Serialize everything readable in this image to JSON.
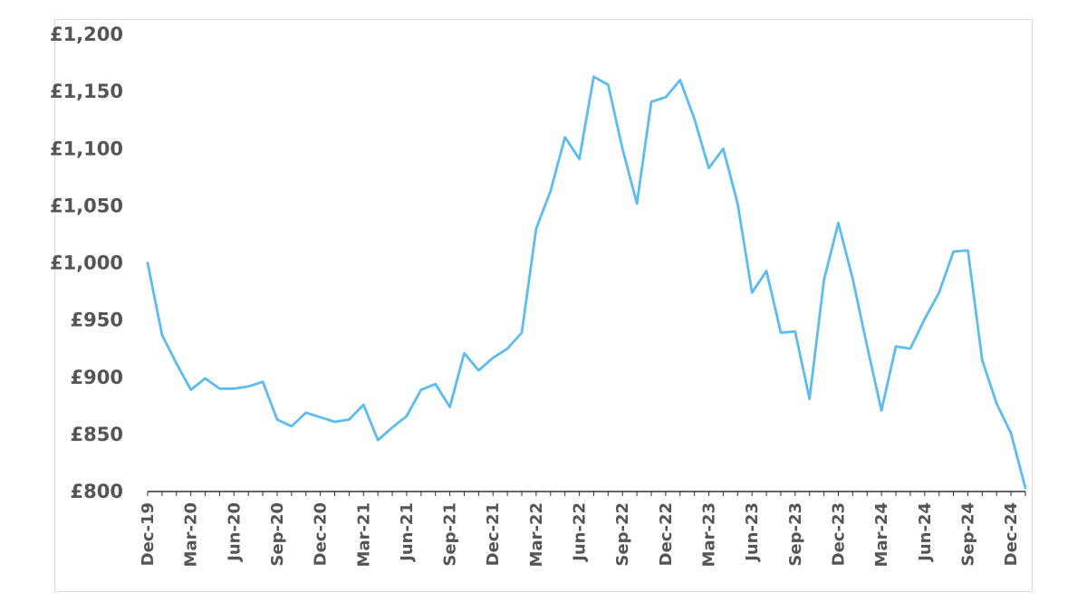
{
  "chart_data": {
    "type": "line",
    "title": "",
    "xlabel": "",
    "ylabel": "",
    "ylim": [
      800,
      1200
    ],
    "y_ticks": [
      800,
      850,
      900,
      950,
      1000,
      1050,
      1100,
      1150,
      1200
    ],
    "y_tick_labels": [
      "£800",
      "£850",
      "£900",
      "£950",
      "£1,000",
      "£1,050",
      "£1,100",
      "£1,150",
      "£1,200"
    ],
    "x_tick_labels": [
      "Dec-19",
      "Mar-20",
      "Jun-20",
      "Sep-20",
      "Dec-20",
      "Mar-21",
      "Jun-21",
      "Sep-21",
      "Dec-21",
      "Mar-22",
      "Jun-22",
      "Sep-22",
      "Dec-22",
      "Mar-23",
      "Jun-23",
      "Sep-23",
      "Dec-23",
      "Mar-24",
      "Jun-24",
      "Sep-24",
      "Dec-24"
    ],
    "x_tick_every": 3,
    "grid": false,
    "legend": "none",
    "line_color": "#5bbcf0",
    "series": [
      {
        "values": [
          1000,
          937,
          912,
          889,
          899,
          890,
          890,
          892,
          896,
          863,
          857,
          869,
          865,
          861,
          863,
          876,
          845,
          856,
          866,
          889,
          894,
          874,
          921,
          906,
          917,
          925,
          939,
          1030,
          1063,
          1110,
          1091,
          1163,
          1156,
          1100,
          1052,
          1141,
          1145,
          1160,
          1126,
          1083,
          1100,
          1052,
          974,
          993,
          939,
          940,
          881,
          985,
          1035,
          986,
          927,
          871,
          927,
          925,
          951,
          974,
          1010,
          1011,
          915,
          877,
          851,
          803
        ]
      }
    ]
  }
}
